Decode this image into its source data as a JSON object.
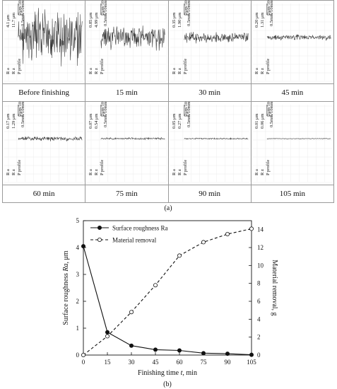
{
  "panel_a": {
    "label": "(a)",
    "scale_h": "0.5mm/10mm",
    "scale_v": "2μm/10mm",
    "row_labels": [
      "R a",
      "R z",
      "P profile"
    ],
    "panels": [
      {
        "time": "Before finishing",
        "ra": "4.1 μm",
        "rz": "11.7 μm",
        "amp": 1.0
      },
      {
        "time": "15 min",
        "ra": "0.85 μm",
        "rz": "4.99 μm",
        "amp": 0.45
      },
      {
        "time": "30 min",
        "ra": "0.35 μm",
        "rz": "1.90 μm",
        "amp": 0.2
      },
      {
        "time": "45 min",
        "ra": "0.20 μm",
        "rz": "1.31 μm",
        "amp": 0.1
      },
      {
        "time": "60 min",
        "ra": "0.17 μm",
        "rz": "1.29 μm",
        "amp": 0.08
      },
      {
        "time": "75 min",
        "ra": "0.07 μm",
        "rz": "0.54 μm",
        "amp": 0.04
      },
      {
        "time": "90 min",
        "ra": "0.05 μm",
        "rz": "0.27 μm",
        "amp": 0.025
      },
      {
        "time": "105 min",
        "ra": "0.01 μm",
        "rz": "0.06 μm",
        "amp": 0.012
      }
    ]
  },
  "chart_data": {
    "type": "line",
    "panel_label": "(b)",
    "xlabel_prefix": "Finishing time ",
    "xlabel_var": "t",
    "xlabel_suffix": ", min",
    "ylabel_left_prefix": "Surface roughness ",
    "ylabel_left_var": "Ra",
    "ylabel_left_suffix": ", μm",
    "ylabel_right": "Material removal, g",
    "x": [
      0,
      15,
      30,
      45,
      60,
      75,
      90,
      105
    ],
    "xlim": [
      0,
      105
    ],
    "ylim_left": [
      0,
      5
    ],
    "ylim_right": [
      0,
      15
    ],
    "xticks": [
      0,
      15,
      30,
      45,
      60,
      75,
      90,
      105
    ],
    "yticks_left": [
      0,
      1,
      2,
      3,
      4,
      5
    ],
    "yticks_right": [
      0,
      2,
      4,
      6,
      8,
      10,
      12,
      14
    ],
    "grid": false,
    "legend_position": "top-left",
    "series": [
      {
        "name": "Surface roughness Ra",
        "axis": "left",
        "style": "solid",
        "marker": "filled-circle",
        "values": [
          4.05,
          0.85,
          0.35,
          0.2,
          0.17,
          0.07,
          0.05,
          0.01
        ]
      },
      {
        "name": "Material removal",
        "axis": "right",
        "style": "dashed",
        "marker": "open-circle",
        "values": [
          0,
          2.1,
          4.8,
          7.8,
          11.1,
          12.6,
          13.5,
          14.1
        ]
      }
    ]
  }
}
